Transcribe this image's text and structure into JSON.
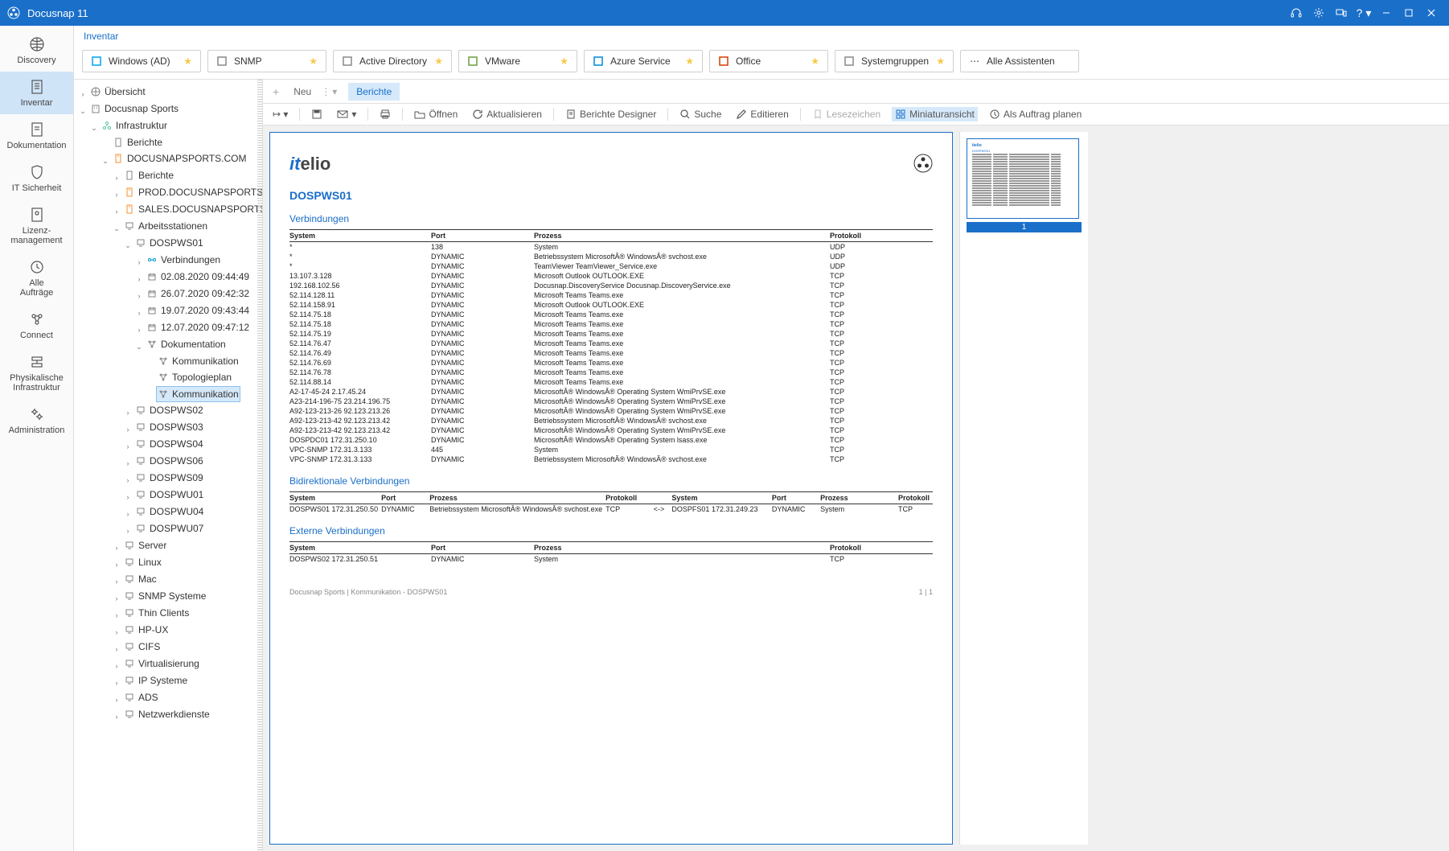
{
  "app": {
    "title": "Docusnap 11"
  },
  "titlebar_icons": [
    "headset",
    "gear",
    "devices",
    "help",
    "minimize",
    "maximize",
    "close"
  ],
  "breadcrumb": "Inventar",
  "leftnav": [
    {
      "name": "discovery",
      "label": "Discovery"
    },
    {
      "name": "inventar",
      "label": "Inventar",
      "active": true
    },
    {
      "name": "dokumentation",
      "label": "Dokumentation"
    },
    {
      "name": "it-sicherheit",
      "label": "IT Sicherheit"
    },
    {
      "name": "lizenz",
      "label": "Lizenz-\nmanagement"
    },
    {
      "name": "auftraege",
      "label": "Alle\nAufträge"
    },
    {
      "name": "connect",
      "label": "Connect"
    },
    {
      "name": "phys",
      "label": "Physikalische\nInfrastruktur"
    },
    {
      "name": "admin",
      "label": "Administration"
    }
  ],
  "ribbon": [
    {
      "label": "Windows (AD)",
      "star": true,
      "color": "#00a4ef"
    },
    {
      "label": "SNMP",
      "star": true
    },
    {
      "label": "Active Directory",
      "star": true
    },
    {
      "label": "VMware",
      "star": true,
      "color": "#6b9e3f"
    },
    {
      "label": "Azure Service",
      "star": true,
      "color": "#0089d6"
    },
    {
      "label": "Office",
      "star": true,
      "color": "#d83b01"
    },
    {
      "label": "Systemgruppen",
      "star": true
    },
    {
      "label": "Alle Assistenten",
      "more": true
    }
  ],
  "tabs": {
    "neu": "Neu",
    "berichte": "Berichte"
  },
  "toolbar": {
    "oeffnen": "Öffnen",
    "aktual": "Aktualisieren",
    "designer": "Berichte Designer",
    "suche": "Suche",
    "edit": "Editieren",
    "lesez": "Lesezeichen",
    "mini": "Miniaturansicht",
    "auftrag": "Als Auftrag planen"
  },
  "tree": {
    "root": "Übersicht",
    "company": "Docusnap Sports",
    "infra": "Infrastruktur",
    "berichte": "Berichte",
    "domain": "DOCUSNAPSPORTS.COM",
    "domain_children": [
      "Berichte",
      "PROD.DOCUSNAPSPORTS.CO",
      "SALES.DOCUSNAPSPORTS.CO"
    ],
    "arbeitsstationen": "Arbeitsstationen",
    "ws01": "DOSPWS01",
    "ws01_children": {
      "verbindungen": "Verbindungen",
      "snaps": [
        "02.08.2020 09:44:49",
        "26.07.2020 09:42:32",
        "19.07.2020 09:43:44",
        "12.07.2020 09:47:12"
      ],
      "doku": "Dokumentation",
      "doku_children": [
        "Kommunikation",
        "Topologieplan",
        "Kommunikation"
      ]
    },
    "ws_rest": [
      "DOSPWS02",
      "DOSPWS03",
      "DOSPWS04",
      "DOSPWS06",
      "DOSPWS09",
      "DOSPWU01",
      "DOSPWU04",
      "DOSPWU07"
    ],
    "categories": [
      "Server",
      "Linux",
      "Mac",
      "SNMP Systeme",
      "Thin Clients",
      "HP-UX",
      "CIFS",
      "Virtualisierung",
      "IP Systeme",
      "ADS",
      "Netzwerkdienste"
    ]
  },
  "report": {
    "logo": "itelio",
    "host": "DOSPWS01",
    "sec1": "Verbindungen",
    "sec1_cols": [
      "System",
      "Port",
      "Prozess",
      "Protokoll"
    ],
    "sec1_rows": [
      [
        "*",
        "138",
        "System",
        "UDP"
      ],
      [
        "*",
        "DYNAMIC",
        "Betriebssystem MicrosoftÂ® WindowsÂ® svchost.exe",
        "UDP"
      ],
      [
        "*",
        "DYNAMIC",
        "TeamViewer TeamViewer_Service.exe",
        "UDP"
      ],
      [
        "13.107.3.128",
        "DYNAMIC",
        "Microsoft Outlook OUTLOOK.EXE",
        "TCP"
      ],
      [
        "192.168.102.56",
        "DYNAMIC",
        "Docusnap.DiscoveryService Docusnap.DiscoveryService.exe",
        "TCP"
      ],
      [
        "52.114.128.11",
        "DYNAMIC",
        "Microsoft Teams Teams.exe",
        "TCP"
      ],
      [
        "52.114.158.91",
        "DYNAMIC",
        "Microsoft Outlook OUTLOOK.EXE",
        "TCP"
      ],
      [
        "52.114.75.18",
        "DYNAMIC",
        "Microsoft Teams Teams.exe",
        "TCP"
      ],
      [
        "52.114.75.18",
        "DYNAMIC",
        "Microsoft Teams Teams.exe",
        "TCP"
      ],
      [
        "52.114.75.19",
        "DYNAMIC",
        "Microsoft Teams Teams.exe",
        "TCP"
      ],
      [
        "52.114.76.47",
        "DYNAMIC",
        "Microsoft Teams Teams.exe",
        "TCP"
      ],
      [
        "52.114.76.49",
        "DYNAMIC",
        "Microsoft Teams Teams.exe",
        "TCP"
      ],
      [
        "52.114.76.69",
        "DYNAMIC",
        "Microsoft Teams Teams.exe",
        "TCP"
      ],
      [
        "52.114.76.78",
        "DYNAMIC",
        "Microsoft Teams Teams.exe",
        "TCP"
      ],
      [
        "52.114.88.14",
        "DYNAMIC",
        "Microsoft Teams Teams.exe",
        "TCP"
      ],
      [
        "A2-17-45-24 2.17.45.24",
        "DYNAMIC",
        "MicrosoftÂ® WindowsÂ® Operating System WmiPrvSE.exe",
        "TCP"
      ],
      [
        "A23-214-196-75 23.214.196.75",
        "DYNAMIC",
        "MicrosoftÂ® WindowsÂ® Operating System WmiPrvSE.exe",
        "TCP"
      ],
      [
        "A92-123-213-26 92.123.213.26",
        "DYNAMIC",
        "MicrosoftÂ® WindowsÂ® Operating System WmiPrvSE.exe",
        "TCP"
      ],
      [
        "A92-123-213-42 92.123.213.42",
        "DYNAMIC",
        "Betriebssystem MicrosoftÂ® WindowsÂ® svchost.exe",
        "TCP"
      ],
      [
        "A92-123-213-42 92.123.213.42",
        "DYNAMIC",
        "MicrosoftÂ® WindowsÂ® Operating System WmiPrvSE.exe",
        "TCP"
      ],
      [
        "DOSPDC01 172.31.250.10",
        "DYNAMIC",
        "MicrosoftÂ® WindowsÂ® Operating System lsass.exe",
        "TCP"
      ],
      [
        "VPC-SNMP 172.31.3.133",
        "445",
        "System",
        "TCP"
      ],
      [
        "VPC-SNMP 172.31.3.133",
        "DYNAMIC",
        "Betriebssystem MicrosoftÂ® WindowsÂ® svchost.exe",
        "TCP"
      ]
    ],
    "sec2": "Bidirektionale Verbindungen",
    "sec2_cols": [
      "System",
      "Port",
      "Prozess",
      "Protokoll",
      "",
      "System",
      "Port",
      "Prozess",
      "Protokoll"
    ],
    "sec2_rows": [
      [
        "DOSPWS01 172.31.250.50",
        "DYNAMIC",
        "Betriebssystem MicrosoftÂ® WindowsÂ® svchost.exe",
        "TCP",
        "<->",
        "DOSPFS01 172.31.249.23",
        "DYNAMIC",
        "System",
        "TCP"
      ]
    ],
    "sec3": "Externe Verbindungen",
    "sec3_cols": [
      "System",
      "Port",
      "Prozess",
      "Protokoll"
    ],
    "sec3_rows": [
      [
        "DOSPWS02 172.31.250.51",
        "DYNAMIC",
        "System",
        "TCP"
      ]
    ],
    "footer_left": "Docusnap Sports | Kommunikation - DOSPWS01",
    "footer_right": "1 | 1"
  },
  "thumb_label": "1"
}
